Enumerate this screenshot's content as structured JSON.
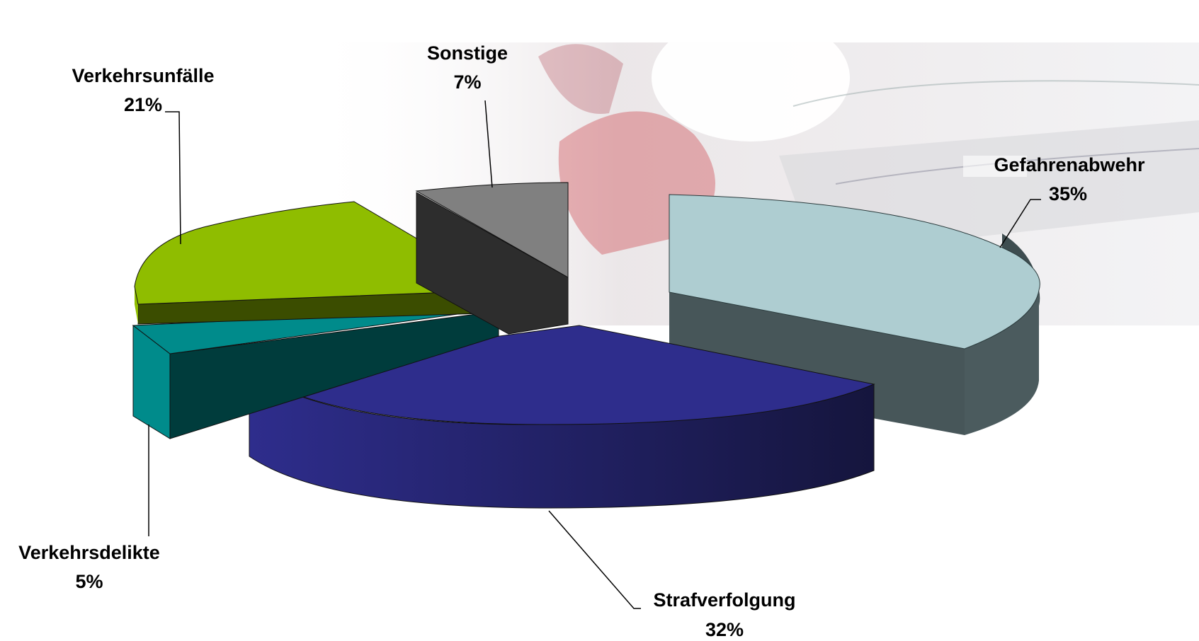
{
  "chart_data": {
    "type": "pie",
    "style": "3d-exploded",
    "title": "",
    "slices": [
      {
        "label": "Gefahrenabwehr",
        "value": 35,
        "pct_label": "35%",
        "top_color": "#aecdd1",
        "side_color": "#4b5b5e"
      },
      {
        "label": "Strafverfolgung",
        "value": 32,
        "pct_label": "32%",
        "top_color": "#2e2d8c",
        "side_color": "#232266"
      },
      {
        "label": "Verkehrsdelikte",
        "value": 5,
        "pct_label": "5%",
        "top_color": "#008b8b",
        "side_color": "#003c3c"
      },
      {
        "label": "Verkehrsunfälle",
        "value": 21,
        "pct_label": "21%",
        "top_color": "#8fbd00",
        "side_color": "#3b4d00"
      },
      {
        "label": "Sonstige",
        "value": 7,
        "pct_label": "7%",
        "top_color": "#808080",
        "side_color": "#2d2d2d"
      }
    ],
    "background": "faded police photo"
  }
}
